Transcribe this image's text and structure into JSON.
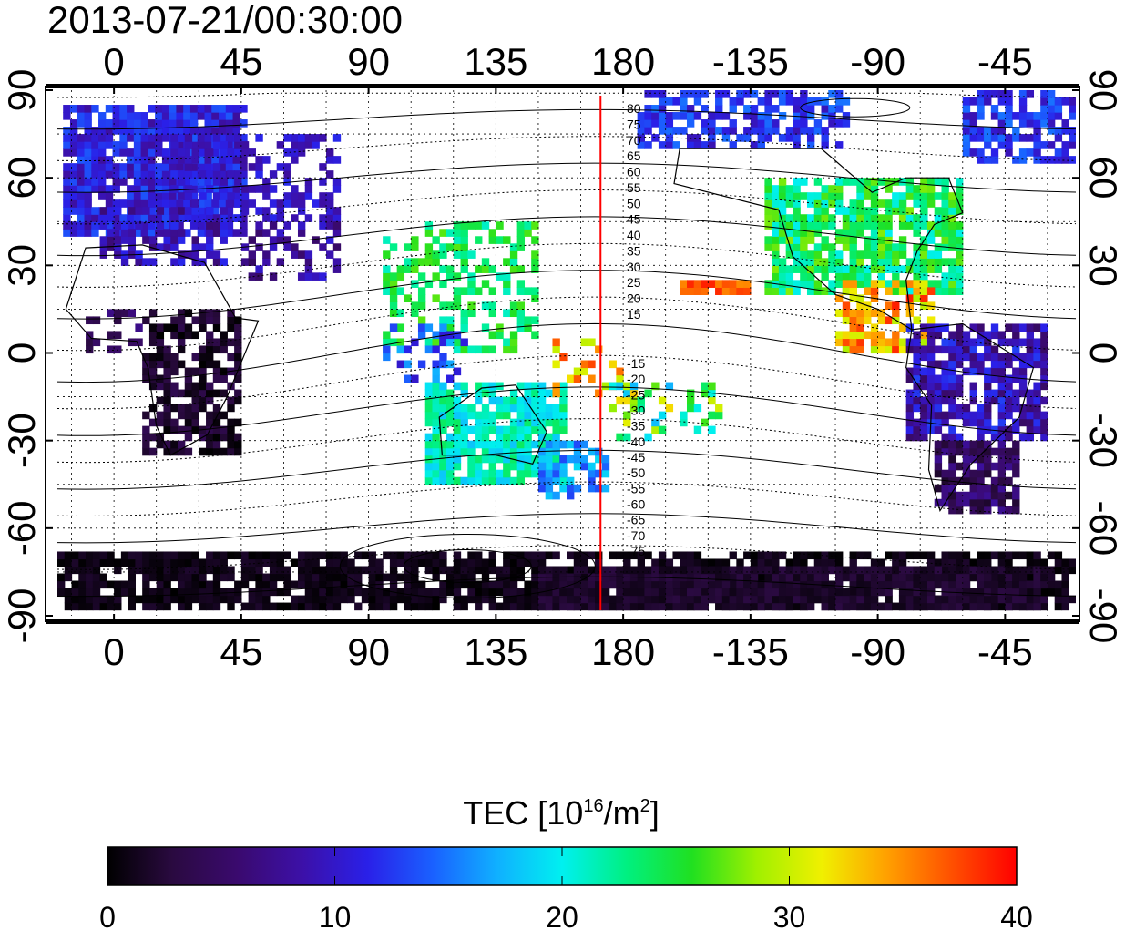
{
  "title": "2013-07-21/00:30:00",
  "map": {
    "x_tick_labels": [
      "0",
      "45",
      "90",
      "135",
      "180",
      "-135",
      "-90",
      "-45"
    ],
    "y_tick_labels": [
      "90",
      "60",
      "30",
      "0",
      "-30",
      "-60",
      "-90"
    ],
    "contour_labels_north": [
      "80",
      "75",
      "70",
      "65",
      "60",
      "55",
      "50",
      "45",
      "40",
      "35",
      "30",
      "25",
      "20",
      "15"
    ],
    "contour_labels_south": [
      "-15",
      "-20",
      "-25",
      "-30",
      "-35",
      "-40",
      "-45",
      "-50",
      "-55",
      "-60",
      "-65",
      "-70",
      "-75"
    ],
    "meridian_marker_color": "#ff0000",
    "meridian_marker_lon": 172
  },
  "colorbar": {
    "label_main": "TEC  [10",
    "label_sup1": "16",
    "label_mid": "/m",
    "label_sup2": "2",
    "label_end": "]",
    "tick_labels": [
      "0",
      "10",
      "20",
      "30",
      "40"
    ],
    "min": 0,
    "max": 40,
    "colors": [
      "#000000",
      "#2a0a40",
      "#3a0a6e",
      "#3c10a8",
      "#2a20e8",
      "#1a60ff",
      "#10b0ff",
      "#00f0f0",
      "#00f080",
      "#20e020",
      "#a0f000",
      "#f0f000",
      "#ffa000",
      "#ff5000",
      "#ff0000"
    ]
  }
}
